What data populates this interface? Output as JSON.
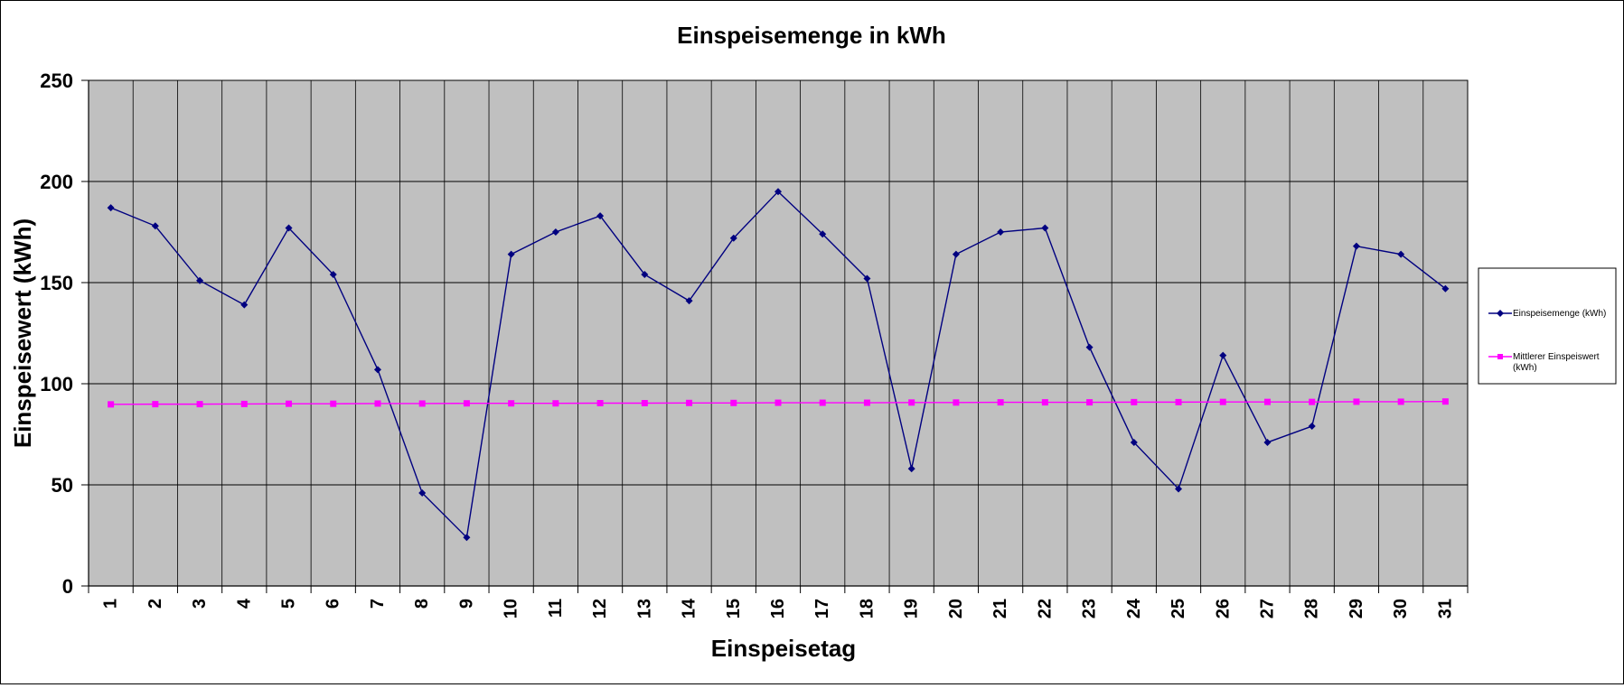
{
  "chart_data": {
    "type": "line",
    "title": "Einspeisemenge in kWh",
    "xlabel": "Einspeisetag",
    "ylabel": "Einspeisewert (kWh)",
    "ylim": [
      0,
      250
    ],
    "yticks": [
      0,
      50,
      100,
      150,
      200,
      250
    ],
    "grid": true,
    "legend_position": "right",
    "plot_background": "#c0c0c0",
    "categories": [
      "1",
      "2",
      "3",
      "4",
      "5",
      "6",
      "7",
      "8",
      "9",
      "10",
      "11",
      "12",
      "13",
      "14",
      "15",
      "16",
      "17",
      "18",
      "19",
      "20",
      "21",
      "22",
      "23",
      "24",
      "25",
      "26",
      "27",
      "28",
      "29",
      "30",
      "31"
    ],
    "series": [
      {
        "name": "Einspeisemenge (kWh)",
        "color": "#000080",
        "marker": "diamond",
        "values": [
          187,
          178,
          151,
          139,
          177,
          154,
          107,
          46,
          24,
          164,
          175,
          183,
          154,
          141,
          172,
          195,
          174,
          152,
          58,
          164,
          175,
          177,
          118,
          71,
          48,
          114,
          71,
          79,
          168,
          164,
          147
        ]
      },
      {
        "name": "Mittlerer Einspeiswert (kWh)",
        "name_lines": [
          "Mittlerer Einspeiswert",
          "(kWh)"
        ],
        "color": "#ff00ff",
        "marker": "square",
        "values": [
          89.8,
          89.9,
          89.9,
          90.0,
          90.1,
          90.1,
          90.2,
          90.2,
          90.3,
          90.3,
          90.3,
          90.4,
          90.4,
          90.5,
          90.5,
          90.6,
          90.6,
          90.6,
          90.7,
          90.7,
          90.8,
          90.8,
          90.8,
          90.9,
          90.9,
          91.0,
          91.0,
          91.0,
          91.1,
          91.1,
          91.2
        ]
      }
    ]
  }
}
